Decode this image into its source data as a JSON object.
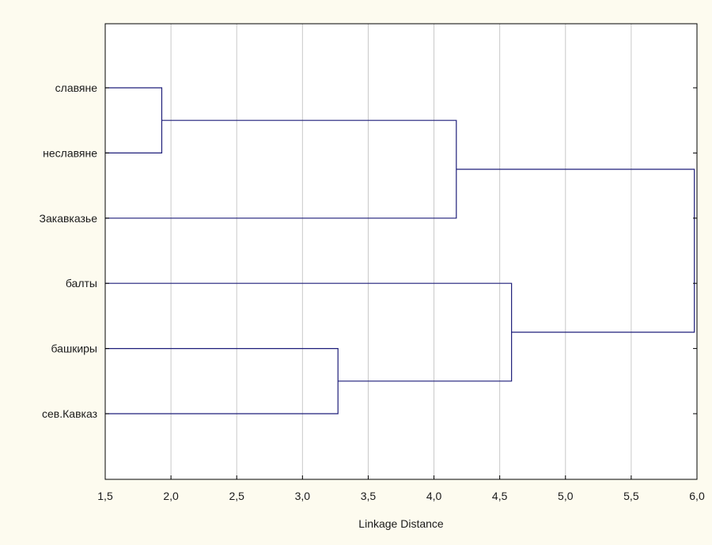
{
  "chart_data": {
    "type": "dendrogram",
    "orientation": "horizontal",
    "xlabel": "Linkage Distance",
    "xlim": [
      1.5,
      6.0
    ],
    "x_ticks": [
      1.5,
      2.0,
      2.5,
      3.0,
      3.5,
      4.0,
      4.5,
      5.0,
      5.5,
      6.0
    ],
    "x_tick_labels": [
      "1,5",
      "2,0",
      "2,5",
      "3,0",
      "3,5",
      "4,0",
      "4,5",
      "5,0",
      "5,5",
      "6,0"
    ],
    "grid": true,
    "leaves": [
      "славяне",
      "неславяне",
      "Закавказье",
      "балты",
      "башкиры",
      "сев.Кавказ"
    ],
    "merges": [
      {
        "left": "L0",
        "right": "L1",
        "distance": 1.93
      },
      {
        "left": "L4",
        "right": "L5",
        "distance": 3.27
      },
      {
        "left": "M0",
        "right": "L2",
        "distance": 4.17
      },
      {
        "left": "L3",
        "right": "M1",
        "distance": 4.59
      },
      {
        "left": "M2",
        "right": "M3",
        "distance": 5.98
      }
    ],
    "colors": {
      "line": "#1f1f7a",
      "grid": "#c8c8c8",
      "frame": "#000000",
      "plot_bg": "#ffffff",
      "page_bg": "#fdfbef"
    }
  }
}
